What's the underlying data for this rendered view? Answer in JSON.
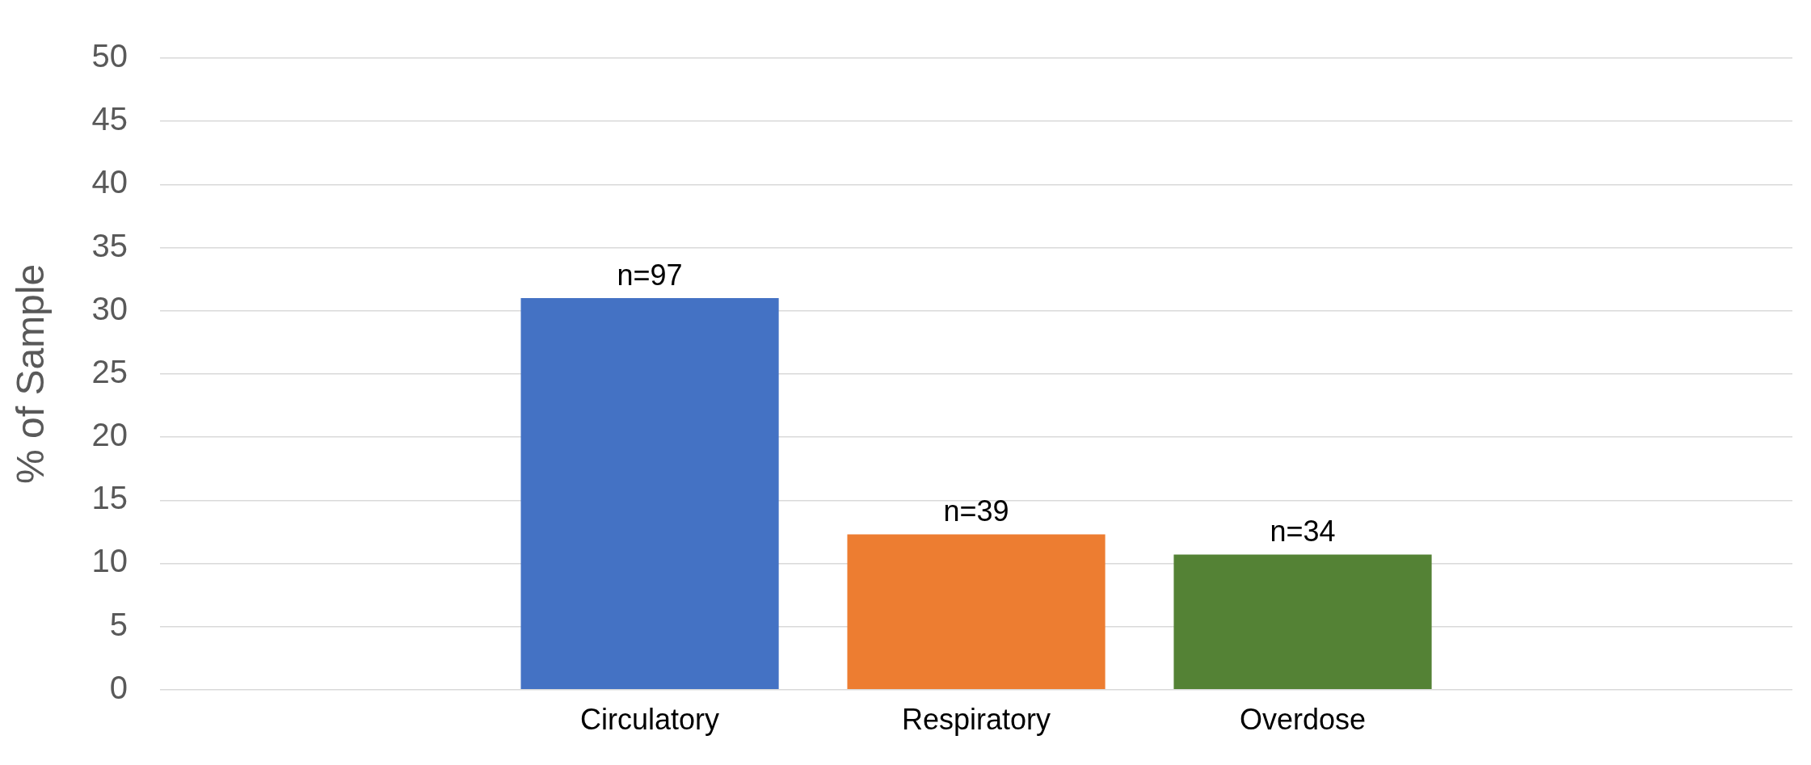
{
  "chart_data": {
    "type": "bar",
    "ylabel": "% of Sample",
    "categories": [
      null,
      "Circulatory",
      "Respiratory",
      "Overdose",
      null
    ],
    "values": [
      null,
      31,
      12.3,
      10.7,
      null
    ],
    "colors": [
      "#4472c4",
      "#4472c4",
      "#ed7d31",
      "#548235",
      "#548235"
    ],
    "annotations": [
      {
        "text": "n=97",
        "x": "Circulatory",
        "y": 31
      },
      {
        "text": "n=39",
        "x": "Respiratory",
        "y": 12.3
      },
      {
        "text": "n=34",
        "x": "Overdose",
        "y": 10.7
      }
    ],
    "ylim": [
      0,
      50
    ],
    "yticks": [
      0,
      5,
      10,
      15,
      20,
      25,
      30,
      35,
      40,
      45,
      50
    ],
    "grid": "y",
    "legend": false
  }
}
